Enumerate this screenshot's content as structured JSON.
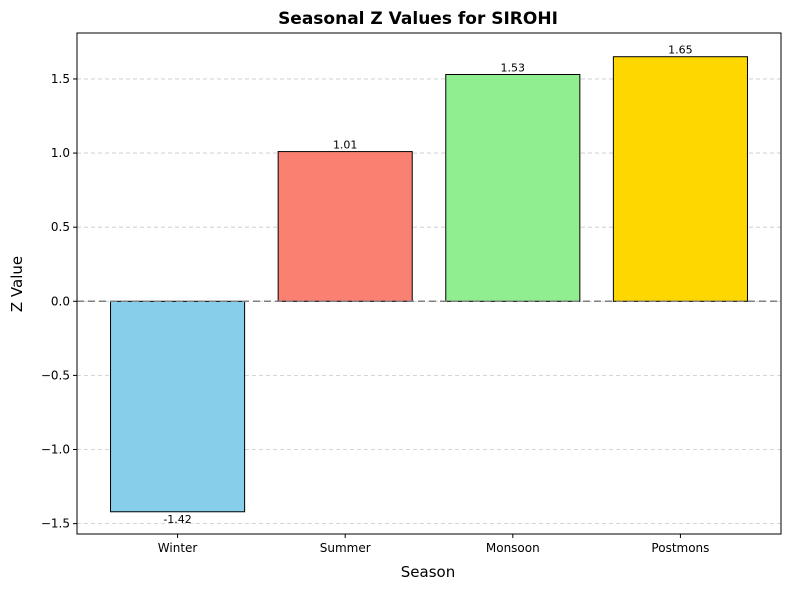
{
  "chart_data": {
    "type": "bar",
    "title": "Seasonal Z Values for SIROHI",
    "xlabel": "Season",
    "ylabel": "Z Value",
    "categories": [
      "Winter",
      "Summer",
      "Monsoon",
      "Postmons"
    ],
    "values": [
      -1.42,
      1.01,
      1.53,
      1.65
    ],
    "value_labels": [
      "-1.42",
      "1.01",
      "1.53",
      "1.65"
    ],
    "colors": [
      "#87CEEB",
      "#FA8072",
      "#90EE90",
      "#FFD700"
    ],
    "ylim": [
      -1.57,
      1.81
    ],
    "yticks": [
      -1.5,
      -1.0,
      -0.5,
      0.0,
      0.5,
      1.0,
      1.5
    ],
    "ytick_labels": [
      "−1.5",
      "−1.0",
      "−0.5",
      "0.0",
      "0.5",
      "1.0",
      "1.5"
    ],
    "grid": "y-dashed",
    "zero_line": {
      "y": 0,
      "style": "dashed",
      "color": "#808080"
    }
  }
}
